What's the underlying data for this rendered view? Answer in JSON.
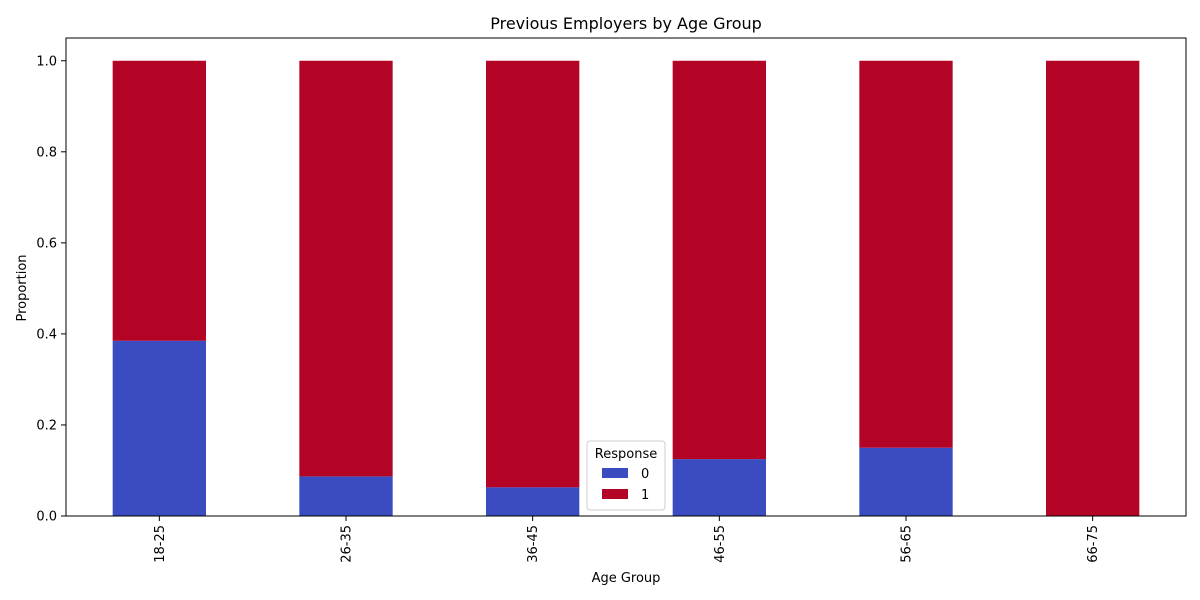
{
  "chart_data": {
    "type": "bar",
    "stacked": true,
    "title": "Previous Employers by Age Group",
    "xlabel": "Age Group",
    "ylabel": "Proportion",
    "categories": [
      "18-25",
      "26-35",
      "36-45",
      "46-55",
      "56-65",
      "66-75"
    ],
    "series": [
      {
        "name": "0",
        "color": "#3b4cc0",
        "values": [
          0.385,
          0.087,
          0.063,
          0.125,
          0.15,
          0.0
        ]
      },
      {
        "name": "1",
        "color": "#b40426",
        "values": [
          0.615,
          0.913,
          0.937,
          0.875,
          0.85,
          1.0
        ]
      }
    ],
    "ylim": [
      0,
      1.05
    ],
    "yticks": [
      0.0,
      0.2,
      0.4,
      0.6,
      0.8,
      1.0
    ],
    "ytick_labels": [
      "0.0",
      "0.2",
      "0.4",
      "0.6",
      "0.8",
      "1.0"
    ],
    "grid": false,
    "legend": {
      "title": "Response",
      "placement": "bottom-center"
    }
  }
}
